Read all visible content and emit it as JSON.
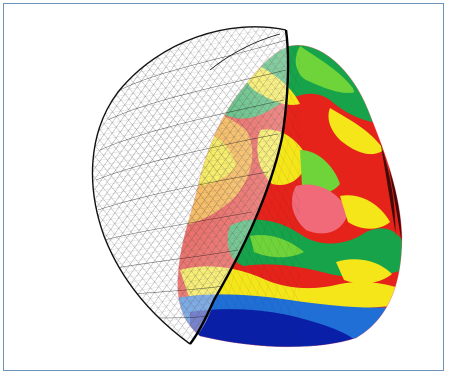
{
  "figure": {
    "frame_color": "#6e93b8",
    "background": "#ffffff",
    "elements": [
      "wireframe-mesh-shell",
      "contour-colored-surface"
    ],
    "colormap": [
      "#0a1fa8",
      "#1f6fd6",
      "#16a34a",
      "#6fd33a",
      "#f5e61a",
      "#f59e1a",
      "#e5231b",
      "#f06a7a"
    ]
  }
}
